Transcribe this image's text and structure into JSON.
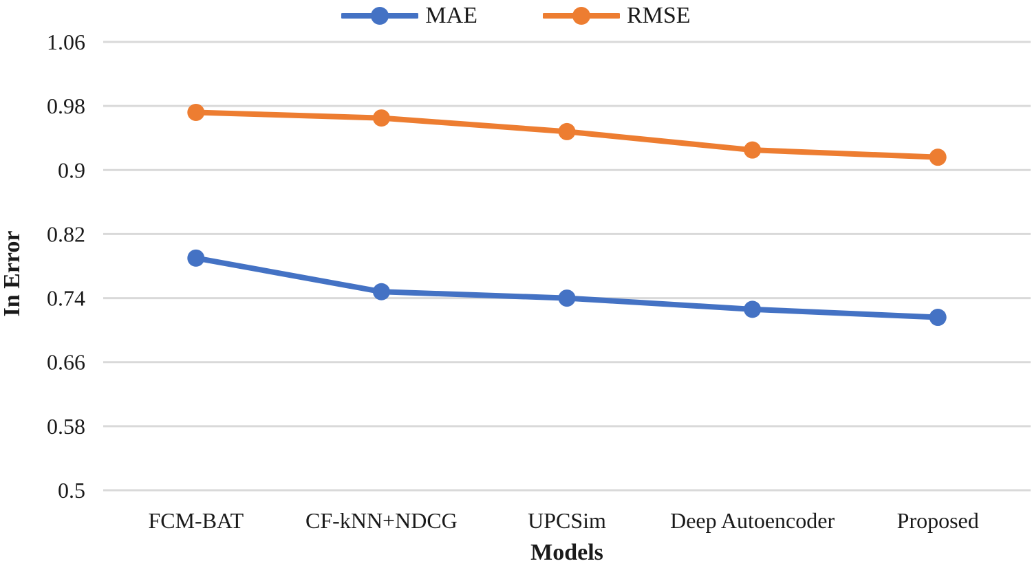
{
  "legend": [
    {
      "label": "MAE",
      "color": "#4472C4"
    },
    {
      "label": "RMSE",
      "color": "#ED7D31"
    }
  ],
  "chart_data": {
    "type": "line",
    "title": "",
    "xlabel": "Models",
    "ylabel": "In Error",
    "categories": [
      "FCM-BAT",
      "CF-kNN+NDCG",
      "UPCSim",
      "Deep Autoencoder",
      "Proposed"
    ],
    "series": [
      {
        "name": "MAE",
        "color": "#4472C4",
        "values": [
          0.79,
          0.748,
          0.74,
          0.726,
          0.716
        ]
      },
      {
        "name": "RMSE",
        "color": "#ED7D31",
        "values": [
          0.972,
          0.965,
          0.948,
          0.925,
          0.916
        ]
      }
    ],
    "ylim": [
      0.5,
      1.06
    ],
    "yticks": [
      0.5,
      0.58,
      0.66,
      0.74,
      0.82,
      0.9,
      0.98,
      1.06
    ],
    "ytick_labels": [
      "0.5",
      "0.58",
      "0.66",
      "0.74",
      "0.82",
      "0.9",
      "0.98",
      "1.06"
    ],
    "grid": true,
    "legend_position": "top",
    "marker": "circle",
    "gridline_color": "#d9d9d9",
    "text_color": "#1a1a1a"
  }
}
